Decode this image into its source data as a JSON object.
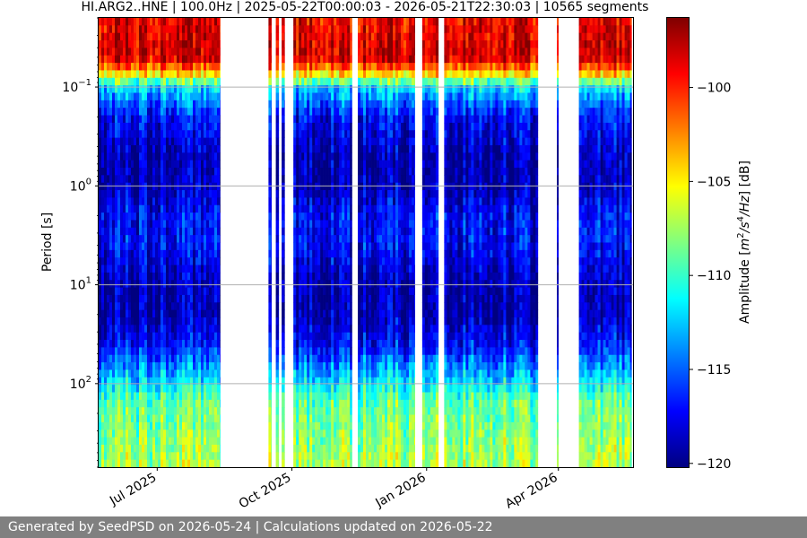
{
  "chart_data": {
    "type": "heatmap",
    "title": "HI.ARG2..HNE | 100.0Hz | 2025-05-22T00:00:03 - 2026-05-21T22:30:03 | 10565 segments",
    "xlabel": "",
    "ylabel": "Period [s]",
    "xlim": [
      "2025-05-22",
      "2026-05-22"
    ],
    "x_ticks": [
      {
        "date": "2025-07-01",
        "label": "Jul 2025"
      },
      {
        "date": "2025-10-01",
        "label": "Oct 2025"
      },
      {
        "date": "2026-01-01",
        "label": "Jan 2026"
      },
      {
        "date": "2026-04-01",
        "label": "Apr 2026"
      }
    ],
    "y_scale": "log",
    "y_inverted": true,
    "ylim": [
      0.02,
      700
    ],
    "y_ticks": [
      {
        "value": 0.1,
        "base": "10",
        "exp": "−1"
      },
      {
        "value": 1,
        "base": "10",
        "exp": "0"
      },
      {
        "value": 10,
        "base": "10",
        "exp": "1"
      },
      {
        "value": 100,
        "base": "10",
        "exp": "2"
      }
    ],
    "grid": true,
    "colorbar": {
      "label": "Amplitude [m²/s⁴/Hz] [dB]",
      "colormap": "jet",
      "range": [
        -120.2,
        -96.3
      ],
      "ticks": [
        {
          "value": -100,
          "label": "−100"
        },
        {
          "value": -105,
          "label": "−105"
        },
        {
          "value": -110,
          "label": "−110"
        },
        {
          "value": -115,
          "label": "−115"
        },
        {
          "value": -120,
          "label": "−120"
        }
      ]
    },
    "data_intervals": [
      [
        "2025-05-22",
        "2025-08-13"
      ],
      [
        "2025-09-15",
        "2025-09-17"
      ],
      [
        "2025-09-20",
        "2025-09-22"
      ],
      [
        "2025-09-24",
        "2025-09-26"
      ],
      [
        "2025-10-02",
        "2025-11-11"
      ],
      [
        "2025-11-15",
        "2025-12-24"
      ],
      [
        "2025-12-29",
        "2026-01-09"
      ],
      [
        "2026-01-13",
        "2026-03-18"
      ],
      [
        "2026-03-31",
        "2026-04-01"
      ],
      [
        "2026-04-15",
        "2026-05-21"
      ]
    ],
    "spectral_profile": [
      {
        "period": 0.02,
        "db": -99
      },
      {
        "period": 0.05,
        "db": -98
      },
      {
        "period": 0.07,
        "db": -103
      },
      {
        "period": 0.1,
        "db": -112
      },
      {
        "period": 0.2,
        "db": -117
      },
      {
        "period": 0.5,
        "db": -119
      },
      {
        "period": 1,
        "db": -119
      },
      {
        "period": 2,
        "db": -117
      },
      {
        "period": 4,
        "db": -117
      },
      {
        "period": 6,
        "db": -118
      },
      {
        "period": 10,
        "db": -119
      },
      {
        "period": 20,
        "db": -119
      },
      {
        "period": 40,
        "db": -117
      },
      {
        "period": 80,
        "db": -113
      },
      {
        "period": 150,
        "db": -109
      },
      {
        "period": 700,
        "db": -107
      }
    ]
  },
  "footer": {
    "text": "Generated by SeedPSD on 2026-05-24 | Calculations updated on 2026-05-22"
  },
  "colors": {
    "grid": "#b0b0b0",
    "footer_bg": "#808080",
    "footer_text": "#ffffff"
  }
}
